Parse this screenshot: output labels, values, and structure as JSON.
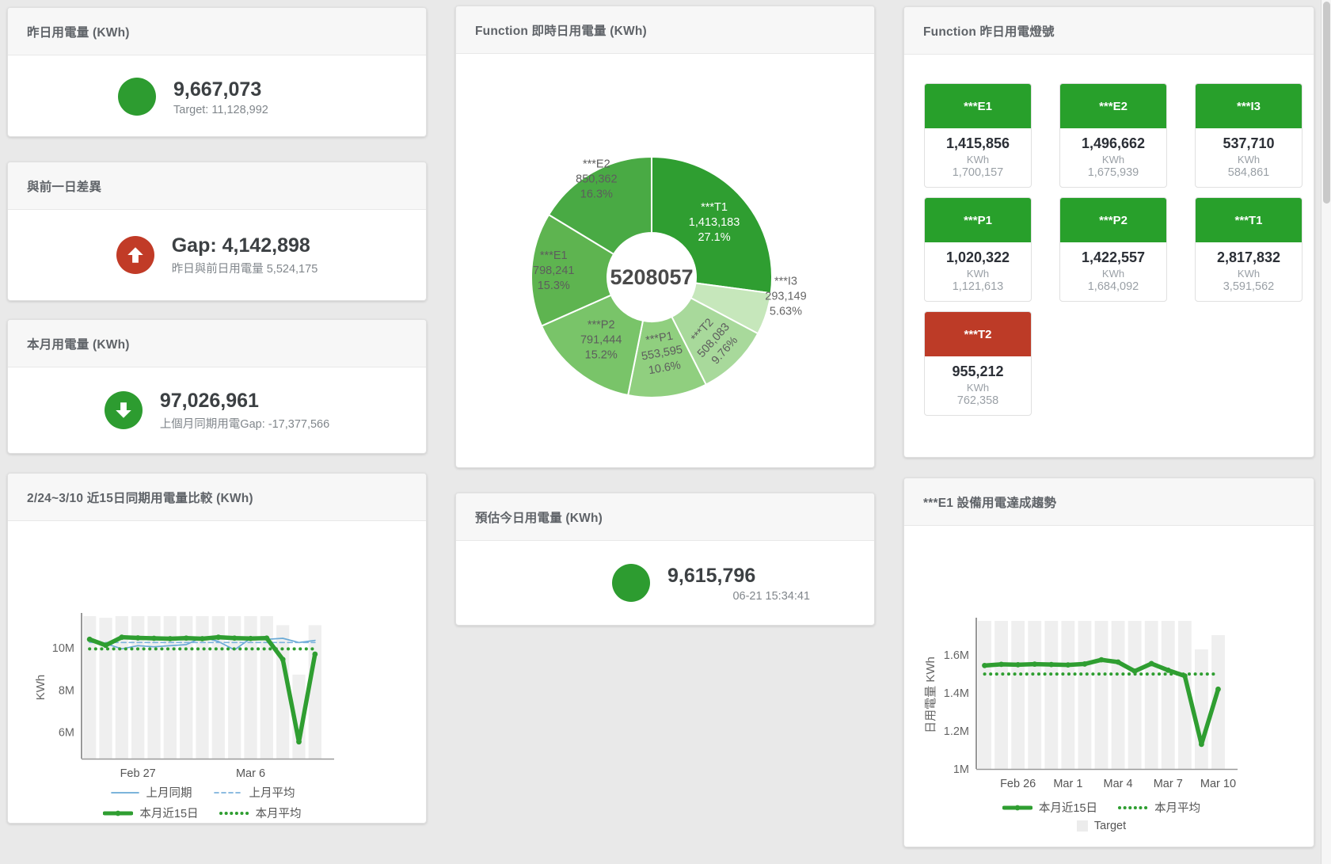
{
  "colors": {
    "green": "#2d9c30",
    "red": "#c13b27",
    "tile_green": "#28a02b",
    "tile_red": "#bd3b27",
    "bar": "#efefef",
    "blue": "#6aaad6",
    "blue_dashed": "#7db3dd",
    "green_line": "#2f9e31",
    "legend_square": "#ececec"
  },
  "cards": {
    "yesterday": {
      "title": "昨日用電量 (KWh)",
      "value": "9,667,073",
      "subtitle": "Target: 11,128,992"
    },
    "diff": {
      "title": "與前一日差異",
      "value": "Gap: 4,142,898",
      "subtitle": "昨日與前日用電量 5,524,175"
    },
    "month": {
      "title": "本月用電量 (KWh)",
      "value": "97,026,961",
      "subtitle": "上個月同期用電Gap: -17,377,566"
    },
    "realtime": {
      "title": "Function 即時日用電量 (KWh)"
    },
    "lights": {
      "title": "Function 昨日用電燈號",
      "tiles": [
        {
          "name": "***E1",
          "value": "1,415,856",
          "unit": "KWh",
          "target": "1,700,157",
          "status": "green"
        },
        {
          "name": "***E2",
          "value": "1,496,662",
          "unit": "KWh",
          "target": "1,675,939",
          "status": "green"
        },
        {
          "name": "***I3",
          "value": "537,710",
          "unit": "KWh",
          "target": "584,861",
          "status": "green"
        },
        {
          "name": "***P1",
          "value": "1,020,322",
          "unit": "KWh",
          "target": "1,121,613",
          "status": "green"
        },
        {
          "name": "***P2",
          "value": "1,422,557",
          "unit": "KWh",
          "target": "1,684,092",
          "status": "green"
        },
        {
          "name": "***T1",
          "value": "2,817,832",
          "unit": "KWh",
          "target": "3,591,562",
          "status": "green"
        },
        {
          "name": "***T2",
          "value": "955,212",
          "unit": "KWh",
          "target": "762,358",
          "status": "red"
        }
      ]
    },
    "compare": {
      "title": "2/24~3/10 近15日同期用電量比較 (KWh)"
    },
    "forecast": {
      "title": "預估今日用電量 (KWh)",
      "value": "9,615,796",
      "subtitle": "06-21 15:34:41"
    },
    "trend": {
      "title": "***E1 設備用電達成趨勢"
    }
  },
  "chart_data": [
    {
      "id": "donut",
      "type": "pie",
      "title": "Function 即時日用電量 (KWh)",
      "center_label": "5208057",
      "slices": [
        {
          "name": "***T1",
          "value": 1413183,
          "display_value": "1,413,183",
          "pct": 27.1,
          "display_pct": "27.1%",
          "color": "#2f9e31",
          "label_color": "#ffffff",
          "label_pos": "inside",
          "label_r": 105,
          "rotate": 0,
          "dy": 0
        },
        {
          "name": "***I3",
          "value": 293149,
          "display_value": "293,149",
          "pct": 5.63,
          "display_pct": "5.63%",
          "color": "#c6e7bb",
          "label_color": "#666666",
          "label_pos": "outside",
          "label_r": 178,
          "rotate": 0,
          "dy": -30
        },
        {
          "name": "***T2",
          "value": 508083,
          "display_value": "508,083",
          "pct": 9.76,
          "display_pct": "9.76%",
          "color": "#a8d99b",
          "label_color": "#5d5d5d",
          "label_pos": "inside",
          "label_r": 112,
          "rotate": -48,
          "dy": 0
        },
        {
          "name": "***P1",
          "value": 553595,
          "display_value": "553,595",
          "pct": 10.6,
          "display_pct": "10.6%",
          "color": "#90cf7f",
          "label_color": "#5d5d5d",
          "label_pos": "inside",
          "label_r": 97,
          "rotate": -10,
          "dy": 0
        },
        {
          "name": "***P2",
          "value": 791444,
          "display_value": "791,444",
          "pct": 15.2,
          "display_pct": "15.2%",
          "color": "#79c469",
          "label_color": "#5d5d5d",
          "label_pos": "inside",
          "label_r": 102,
          "rotate": 0,
          "dy": 0
        },
        {
          "name": "***E1",
          "value": 798241,
          "display_value": "798,241",
          "pct": 15.3,
          "display_pct": "15.3%",
          "color": "#5eb450",
          "label_color": "#5d5d5d",
          "label_pos": "inside",
          "label_r": 124,
          "rotate": 0,
          "dy": 0
        },
        {
          "name": "***E2",
          "value": 850362,
          "display_value": "850,362",
          "pct": 16.3,
          "display_pct": "16.3%",
          "color": "#49aa44",
          "label_color": "#5d5d5d",
          "label_pos": "inside",
          "label_r": 142,
          "rotate": 0,
          "dy": 0
        }
      ]
    },
    {
      "id": "compare15",
      "type": "line",
      "title": "2/24~3/10 近15日同期用電量比較 (KWh)",
      "ylabel": "KWh",
      "unit": "M KWh",
      "categories": [
        "2/24",
        "2/25",
        "2/26",
        "2/27",
        "2/28",
        "3/1",
        "3/2",
        "3/3",
        "3/4",
        "3/5",
        "3/6",
        "3/7",
        "3/8",
        "3/9",
        "3/10"
      ],
      "ylim": [
        4.75,
        11.5
      ],
      "yticks": [
        {
          "v": 6,
          "label": "6M"
        },
        {
          "v": 8,
          "label": "8M"
        },
        {
          "v": 10,
          "label": "10M"
        }
      ],
      "xticks": [
        {
          "i": 3,
          "label": "Feb 27"
        },
        {
          "i": 10,
          "label": "Mar 6"
        }
      ],
      "target_bars": [
        11.5,
        11.42,
        11.5,
        11.5,
        11.5,
        11.5,
        11.5,
        11.5,
        11.5,
        11.5,
        11.5,
        11.5,
        11.07,
        8.73,
        11.07
      ],
      "series": [
        {
          "name": "上月同期",
          "style": "solid",
          "color": "#6aaad6",
          "width": 1.7,
          "points": false,
          "values": [
            10.45,
            10.2,
            9.95,
            10.1,
            10.05,
            10.1,
            10.15,
            10.5,
            10.3,
            9.9,
            10.45,
            10.4,
            10.45,
            10.25,
            10.35
          ]
        },
        {
          "name": "上月平均",
          "style": "dashed",
          "color": "#7db3dd",
          "width": 1.7,
          "points": false,
          "values": 10.25
        },
        {
          "name": "本月平均",
          "style": "dotted",
          "color": "#2f9e31",
          "width": 4,
          "points": false,
          "values": 9.95
        },
        {
          "name": "本月近15日",
          "style": "solid",
          "color": "#2f9e31",
          "width": 5.5,
          "points": true,
          "values": [
            10.4,
            10.12,
            10.5,
            10.47,
            10.45,
            10.43,
            10.46,
            10.43,
            10.5,
            10.46,
            10.44,
            10.46,
            9.45,
            5.55,
            9.7
          ]
        }
      ],
      "legend_rows": [
        [
          "上月同期",
          "上月平均"
        ],
        [
          "本月近15日",
          "本月平均"
        ],
        [
          "Target"
        ]
      ]
    },
    {
      "id": "e1trend",
      "type": "line",
      "title": "***E1 設備用電達成趨勢",
      "ylabel": "日用電量 KWh",
      "unit": "M KWh",
      "categories": [
        "2/24",
        "2/25",
        "2/26",
        "2/27",
        "2/28",
        "3/1",
        "3/2",
        "3/3",
        "3/4",
        "3/5",
        "3/6",
        "3/7",
        "3/8",
        "3/9",
        "3/10"
      ],
      "ylim": [
        1.0,
        1.78
      ],
      "yticks": [
        {
          "v": 1.0,
          "label": "1M"
        },
        {
          "v": 1.2,
          "label": "1.2M"
        },
        {
          "v": 1.4,
          "label": "1.4M"
        },
        {
          "v": 1.6,
          "label": "1.6M"
        }
      ],
      "xticks": [
        {
          "i": 2,
          "label": "Feb 26"
        },
        {
          "i": 5,
          "label": "Mar 1"
        },
        {
          "i": 8,
          "label": "Mar 4"
        },
        {
          "i": 11,
          "label": "Mar 7"
        },
        {
          "i": 14,
          "label": "Mar 10"
        }
      ],
      "target_bars": [
        1.78,
        1.78,
        1.78,
        1.78,
        1.78,
        1.78,
        1.78,
        1.78,
        1.78,
        1.78,
        1.78,
        1.78,
        1.78,
        1.63,
        1.705
      ],
      "series": [
        {
          "name": "本月平均",
          "style": "dotted",
          "color": "#2f9e31",
          "width": 4,
          "points": false,
          "values": 1.5
        },
        {
          "name": "本月近15日",
          "style": "solid",
          "color": "#2f9e31",
          "width": 5.5,
          "points": true,
          "values": [
            1.545,
            1.551,
            1.549,
            1.552,
            1.55,
            1.548,
            1.553,
            1.575,
            1.563,
            1.515,
            1.555,
            1.52,
            1.49,
            1.13,
            1.42
          ]
        }
      ],
      "legend_rows": [
        [
          "本月近15日",
          "本月平均"
        ],
        [
          "Target"
        ]
      ]
    }
  ]
}
